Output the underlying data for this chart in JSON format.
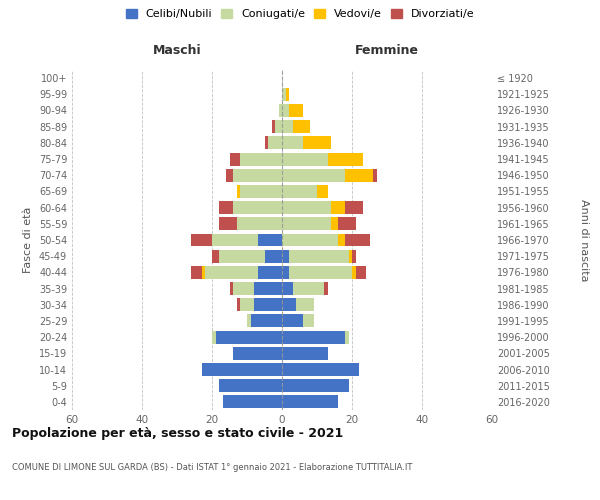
{
  "age_groups": [
    "0-4",
    "5-9",
    "10-14",
    "15-19",
    "20-24",
    "25-29",
    "30-34",
    "35-39",
    "40-44",
    "45-49",
    "50-54",
    "55-59",
    "60-64",
    "65-69",
    "70-74",
    "75-79",
    "80-84",
    "85-89",
    "90-94",
    "95-99",
    "100+"
  ],
  "birth_years": [
    "2016-2020",
    "2011-2015",
    "2006-2010",
    "2001-2005",
    "1996-2000",
    "1991-1995",
    "1986-1990",
    "1981-1985",
    "1976-1980",
    "1971-1975",
    "1966-1970",
    "1961-1965",
    "1956-1960",
    "1951-1955",
    "1946-1950",
    "1941-1945",
    "1936-1940",
    "1931-1935",
    "1926-1930",
    "1921-1925",
    "≤ 1920"
  ],
  "males": {
    "celibi": [
      17,
      18,
      23,
      14,
      19,
      9,
      8,
      8,
      7,
      5,
      7,
      0,
      0,
      0,
      0,
      0,
      0,
      0,
      0,
      0,
      0
    ],
    "coniugati": [
      0,
      0,
      0,
      0,
      1,
      1,
      4,
      6,
      15,
      13,
      13,
      13,
      14,
      12,
      14,
      12,
      4,
      2,
      1,
      0,
      0
    ],
    "vedovi": [
      0,
      0,
      0,
      0,
      0,
      0,
      0,
      0,
      1,
      0,
      0,
      0,
      0,
      1,
      0,
      0,
      0,
      0,
      0,
      0,
      0
    ],
    "divorziati": [
      0,
      0,
      0,
      0,
      0,
      0,
      1,
      1,
      3,
      2,
      6,
      5,
      4,
      0,
      2,
      3,
      1,
      1,
      0,
      0,
      0
    ]
  },
  "females": {
    "nubili": [
      16,
      19,
      22,
      13,
      18,
      6,
      4,
      3,
      2,
      2,
      0,
      0,
      0,
      0,
      0,
      0,
      0,
      0,
      0,
      0,
      0
    ],
    "coniugate": [
      0,
      0,
      0,
      0,
      1,
      3,
      5,
      9,
      18,
      17,
      16,
      14,
      14,
      10,
      18,
      13,
      6,
      3,
      2,
      1,
      0
    ],
    "vedove": [
      0,
      0,
      0,
      0,
      0,
      0,
      0,
      0,
      1,
      1,
      2,
      2,
      4,
      3,
      8,
      10,
      8,
      5,
      4,
      1,
      0
    ],
    "divorziate": [
      0,
      0,
      0,
      0,
      0,
      0,
      0,
      1,
      3,
      1,
      7,
      5,
      5,
      0,
      1,
      0,
      0,
      0,
      0,
      0,
      0
    ]
  },
  "colors": {
    "celibi": "#4472c4",
    "coniugati": "#c5d9a0",
    "vedovi": "#ffc000",
    "divorziati": "#c0504d"
  },
  "title": "Popolazione per età, sesso e stato civile - 2021",
  "subtitle": "COMUNE DI LIMONE SUL GARDA (BS) - Dati ISTAT 1° gennaio 2021 - Elaborazione TUTTITALIA.IT",
  "xlabel_left": "Maschi",
  "xlabel_right": "Femmine",
  "ylabel_left": "Fasce di età",
  "ylabel_right": "Anni di nascita",
  "xlim": 60,
  "background_color": "#ffffff",
  "grid_color": "#bbbbbb",
  "legend_labels": [
    "Celibi/Nubili",
    "Coniugati/e",
    "Vedovi/e",
    "Divorziati/e"
  ]
}
